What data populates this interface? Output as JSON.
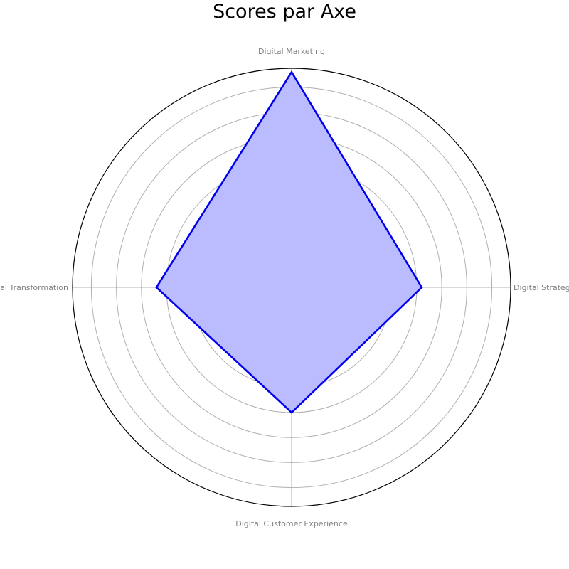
{
  "chart_data": {
    "type": "radar",
    "title": "Scores par Axe",
    "axes": [
      "Digital Strategy",
      "Digital Marketing",
      "Digital Transformation",
      "Digital Customer Experience"
    ],
    "series": [
      {
        "values": [
          5.2,
          8.6,
          5.4,
          5.0
        ]
      }
    ],
    "rlim": [
      0,
      8.75
    ],
    "grid": true,
    "colors": {
      "line": "#0000ee",
      "fill": "#bbbbff",
      "grid": "#b0b0b0",
      "frame": "#000000",
      "axis_label": "#808080"
    }
  }
}
